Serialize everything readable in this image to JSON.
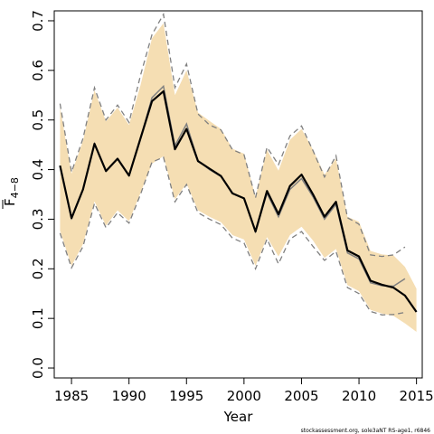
{
  "chart_data": {
    "type": "line",
    "xlabel": "Year",
    "ylabel_main": "F",
    "ylabel_sub": "4−8",
    "footer_note": "stockassessment.org, sole3aNT RS-age1, r6846",
    "xlim": [
      1983.5,
      2015.5
    ],
    "ylim": [
      -0.02,
      0.72
    ],
    "xticks": [
      1985,
      1990,
      1995,
      2000,
      2005,
      2010,
      2015
    ],
    "yticks": [
      0.0,
      0.1,
      0.2,
      0.3,
      0.4,
      0.5,
      0.6,
      0.7
    ],
    "ytick_labels": [
      "0.0",
      "0.1",
      "0.2",
      "0.3",
      "0.4",
      "0.5",
      "0.6",
      "0.7"
    ],
    "grid": false,
    "colors": {
      "band": "#f5deb3",
      "estimate": "#000000",
      "comparison": "#808080",
      "axis": "#000000"
    },
    "series": [
      {
        "role": "estimate",
        "x": [
          1984,
          1985,
          1986,
          1987,
          1988,
          1989,
          1990,
          1991,
          1992,
          1993,
          1994,
          1995,
          1996,
          1997,
          1998,
          1999,
          2000,
          2001,
          2002,
          2003,
          2004,
          2005,
          2006,
          2007,
          2008,
          2009,
          2010,
          2011,
          2012,
          2013,
          2014,
          2015
        ],
        "y": [
          0.408,
          0.302,
          0.36,
          0.452,
          0.397,
          0.422,
          0.388,
          0.463,
          0.538,
          0.558,
          0.441,
          0.482,
          0.417,
          0.402,
          0.387,
          0.352,
          0.342,
          0.275,
          0.357,
          0.31,
          0.367,
          0.39,
          0.35,
          0.305,
          0.335,
          0.237,
          0.225,
          0.176,
          0.168,
          0.162,
          0.146,
          0.113
        ]
      },
      {
        "role": "estimate-lower",
        "x": [
          1984,
          1985,
          1986,
          1987,
          1988,
          1989,
          1990,
          1991,
          1992,
          1993,
          1994,
          1995,
          1996,
          1997,
          1998,
          1999,
          2000,
          2001,
          2002,
          2003,
          2004,
          2005,
          2006,
          2007,
          2008,
          2009,
          2010,
          2011,
          2012,
          2013,
          2014,
          2015
        ],
        "y": [
          0.277,
          0.206,
          0.25,
          0.336,
          0.287,
          0.318,
          0.296,
          0.353,
          0.412,
          0.427,
          0.34,
          0.372,
          0.318,
          0.305,
          0.294,
          0.268,
          0.259,
          0.206,
          0.264,
          0.225,
          0.268,
          0.285,
          0.257,
          0.222,
          0.24,
          0.167,
          0.155,
          0.117,
          0.11,
          0.105,
          0.09,
          0.073
        ]
      },
      {
        "role": "estimate-upper",
        "x": [
          1984,
          1985,
          1986,
          1987,
          1988,
          1989,
          1990,
          1991,
          1992,
          1993,
          1994,
          1995,
          1996,
          1997,
          1998,
          1999,
          2000,
          2001,
          2002,
          2003,
          2004,
          2005,
          2006,
          2007,
          2008,
          2009,
          2010,
          2011,
          2012,
          2013,
          2014,
          2015
        ],
        "y": [
          0.525,
          0.392,
          0.458,
          0.56,
          0.497,
          0.525,
          0.49,
          0.57,
          0.665,
          0.695,
          0.55,
          0.6,
          0.515,
          0.498,
          0.482,
          0.442,
          0.432,
          0.345,
          0.44,
          0.398,
          0.46,
          0.482,
          0.44,
          0.39,
          0.422,
          0.305,
          0.295,
          0.236,
          0.229,
          0.227,
          0.204,
          0.16
        ]
      },
      {
        "role": "comparison",
        "x": [
          1984,
          1985,
          1986,
          1987,
          1988,
          1989,
          1990,
          1991,
          1992,
          1993,
          1994,
          1995,
          1996,
          1997,
          1998,
          1999,
          2000,
          2001,
          2002,
          2003,
          2004,
          2005,
          2006,
          2007,
          2008,
          2009,
          2010,
          2011,
          2012,
          2013,
          2014
        ],
        "y": [
          0.408,
          0.302,
          0.36,
          0.452,
          0.397,
          0.422,
          0.388,
          0.463,
          0.545,
          0.568,
          0.448,
          0.492,
          0.418,
          0.4,
          0.386,
          0.352,
          0.342,
          0.275,
          0.352,
          0.305,
          0.36,
          0.382,
          0.345,
          0.3,
          0.33,
          0.232,
          0.22,
          0.172,
          0.166,
          0.165,
          0.18
        ]
      },
      {
        "role": "comparison-lower",
        "x": [
          1984,
          1985,
          1986,
          1987,
          1988,
          1989,
          1990,
          1991,
          1992,
          1993,
          1994,
          1995,
          1996,
          1997,
          1998,
          1999,
          2000,
          2001,
          2002,
          2003,
          2004,
          2005,
          2006,
          2007,
          2008,
          2009,
          2010,
          2011,
          2012,
          2013,
          2014
        ],
        "y": [
          0.272,
          0.202,
          0.245,
          0.332,
          0.283,
          0.313,
          0.292,
          0.35,
          0.415,
          0.425,
          0.335,
          0.37,
          0.313,
          0.3,
          0.289,
          0.262,
          0.252,
          0.2,
          0.26,
          0.21,
          0.26,
          0.275,
          0.245,
          0.217,
          0.235,
          0.162,
          0.15,
          0.114,
          0.107,
          0.108,
          0.112
        ]
      },
      {
        "role": "comparison-upper",
        "x": [
          1984,
          1985,
          1986,
          1987,
          1988,
          1989,
          1990,
          1991,
          1992,
          1993,
          1994,
          1995,
          1996,
          1997,
          1998,
          1999,
          2000,
          2001,
          2002,
          2003,
          2004,
          2005,
          2006,
          2007,
          2008,
          2009,
          2010,
          2011,
          2012,
          2013,
          2014
        ],
        "y": [
          0.533,
          0.395,
          0.463,
          0.565,
          0.5,
          0.53,
          0.495,
          0.59,
          0.672,
          0.713,
          0.565,
          0.613,
          0.512,
          0.49,
          0.48,
          0.44,
          0.43,
          0.343,
          0.445,
          0.41,
          0.468,
          0.488,
          0.438,
          0.385,
          0.428,
          0.303,
          0.29,
          0.228,
          0.225,
          0.228,
          0.244
        ]
      }
    ]
  }
}
